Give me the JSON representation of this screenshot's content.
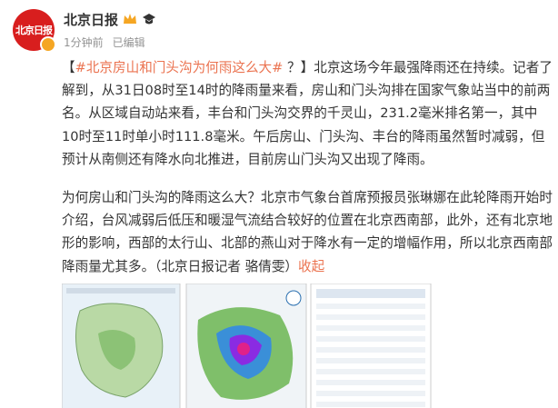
{
  "header": {
    "avatar_text": "北京日报",
    "name": "北京日报",
    "time": "1分钟前",
    "edited": "已编辑"
  },
  "post": {
    "lead_open": "【",
    "hashtag": "#北京房山和门头沟为何雨这么大# ",
    "lead_close": "？】",
    "paragraphs": [
      "北京这场今年最强降雨还在持续。记者了解到，从31日08时至14时的降雨量来看，房山和门头沟排在国家气象站当中的前两名。从区域自动站来看，丰台和门头沟交界的千灵山，231.2毫米排名第一，其中10时至11时单小时111.8毫米。午后房山、门头沟、丰台的降雨虽然暂时减弱，但预计从南侧还有降水向北推进，目前房山门头沟又出现了降雨。",
      "为何房山和门头沟的降雨这么大？北京市气象台首席预报员张琳娜在此轮降雨开始时介绍，台风减弱后低压和暖湿气流结合较好的位置在北京西南部，此外，还有北京地形的影响，西部的太行山、北部的燕山对于降水有一定的增幅作用，所以北京西南部降雨量尤其多。（北京日报记者 骆倩雯）"
    ],
    "collapse": "收起"
  }
}
